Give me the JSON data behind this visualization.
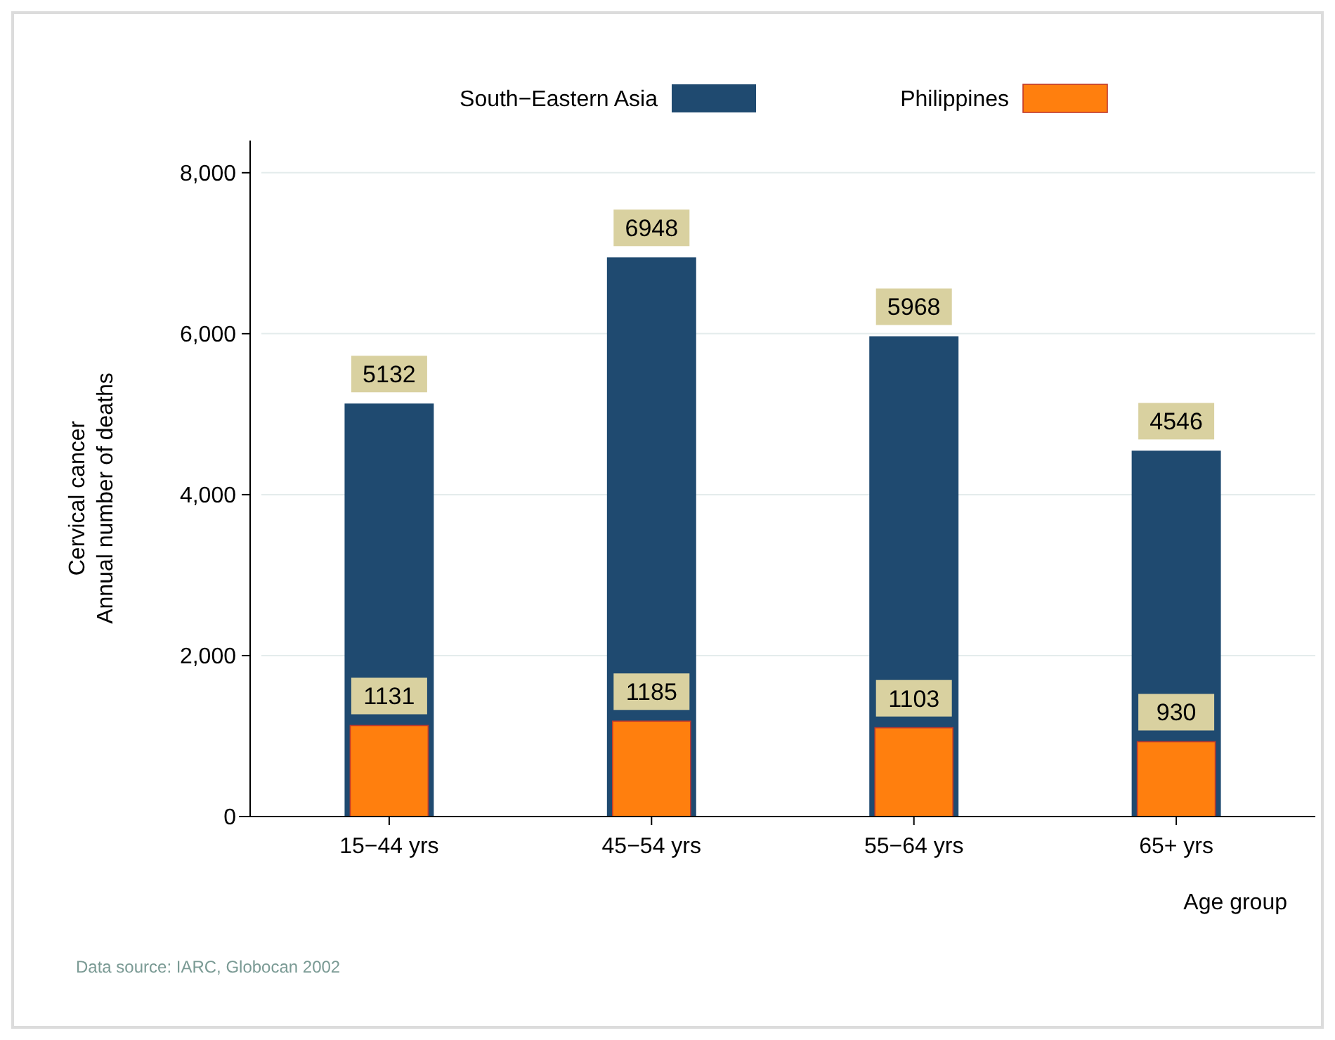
{
  "chart_data": {
    "type": "bar",
    "categories": [
      "15−44 yrs",
      "45−54 yrs",
      "55−64 yrs",
      "65+ yrs"
    ],
    "series": [
      {
        "name": "South−Eastern Asia",
        "color": "#1f4a70",
        "values": [
          5132,
          6948,
          5968,
          4546
        ]
      },
      {
        "name": "Philippines",
        "color": "#ff7f0e",
        "values": [
          1131,
          1185,
          1103,
          930
        ]
      }
    ],
    "ylim": [
      0,
      8400
    ],
    "yticks": [
      {
        "value": 0,
        "label": "0"
      },
      {
        "value": 2000,
        "label": "2,000"
      },
      {
        "value": 4000,
        "label": "4,000"
      },
      {
        "value": 6000,
        "label": "6,000"
      },
      {
        "value": 8000,
        "label": "8,000"
      }
    ],
    "ylabel": "Cervical cancer\nAnnual number of deaths",
    "xlabel": "Age group",
    "grid": "y",
    "legend": "top",
    "data_labels": true,
    "annotations": [
      "Data source: IARC, Globocan 2002"
    ]
  }
}
